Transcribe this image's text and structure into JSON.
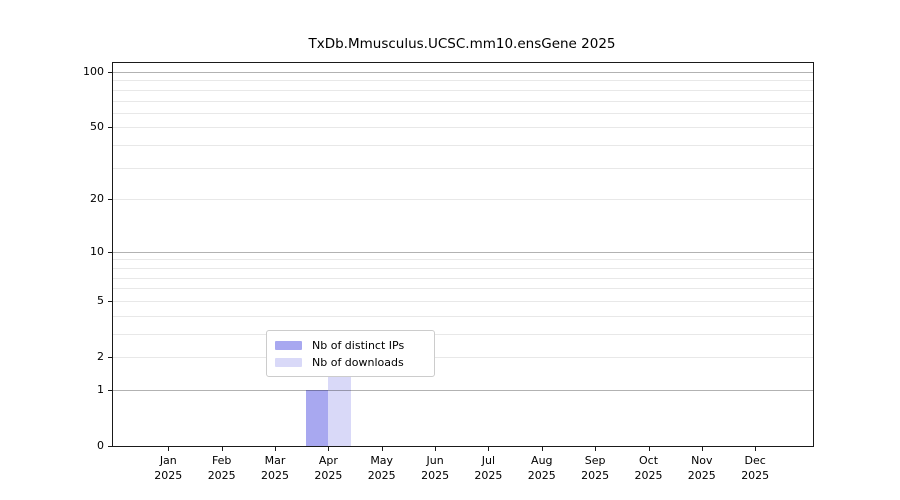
{
  "chart_data": {
    "type": "bar",
    "title": "TxDb.Mmusculus.UCSC.mm10.ensGene 2025",
    "xlabel": "",
    "ylabel": "",
    "categories": [
      "Jan",
      "Feb",
      "Mar",
      "Apr",
      "May",
      "Jun",
      "Jul",
      "Aug",
      "Sep",
      "Oct",
      "Nov",
      "Dec"
    ],
    "year_label": "2025",
    "series": [
      {
        "name": "Nb of distinct IPs",
        "color": "#a8a8f0",
        "values": [
          0,
          0,
          0,
          1,
          0,
          0,
          0,
          0,
          0,
          0,
          0,
          0
        ]
      },
      {
        "name": "Nb of downloads",
        "color": "#d9d9f8",
        "values": [
          0,
          0,
          0,
          2,
          0,
          0,
          0,
          0,
          0,
          0,
          0,
          0
        ]
      }
    ],
    "y_scale": "log10(1+v)",
    "ylim": [
      0,
      110
    ],
    "y_ticks": [
      0,
      1,
      2,
      5,
      10,
      20,
      50,
      100
    ],
    "y_major_gridlines": [
      1,
      10,
      100
    ],
    "y_minor_gridlines": [
      2,
      3,
      4,
      5,
      6,
      7,
      8,
      9,
      20,
      30,
      40,
      50,
      60,
      70,
      80,
      90
    ],
    "grid": "horizontal-only",
    "legend_position": "lower-center"
  }
}
